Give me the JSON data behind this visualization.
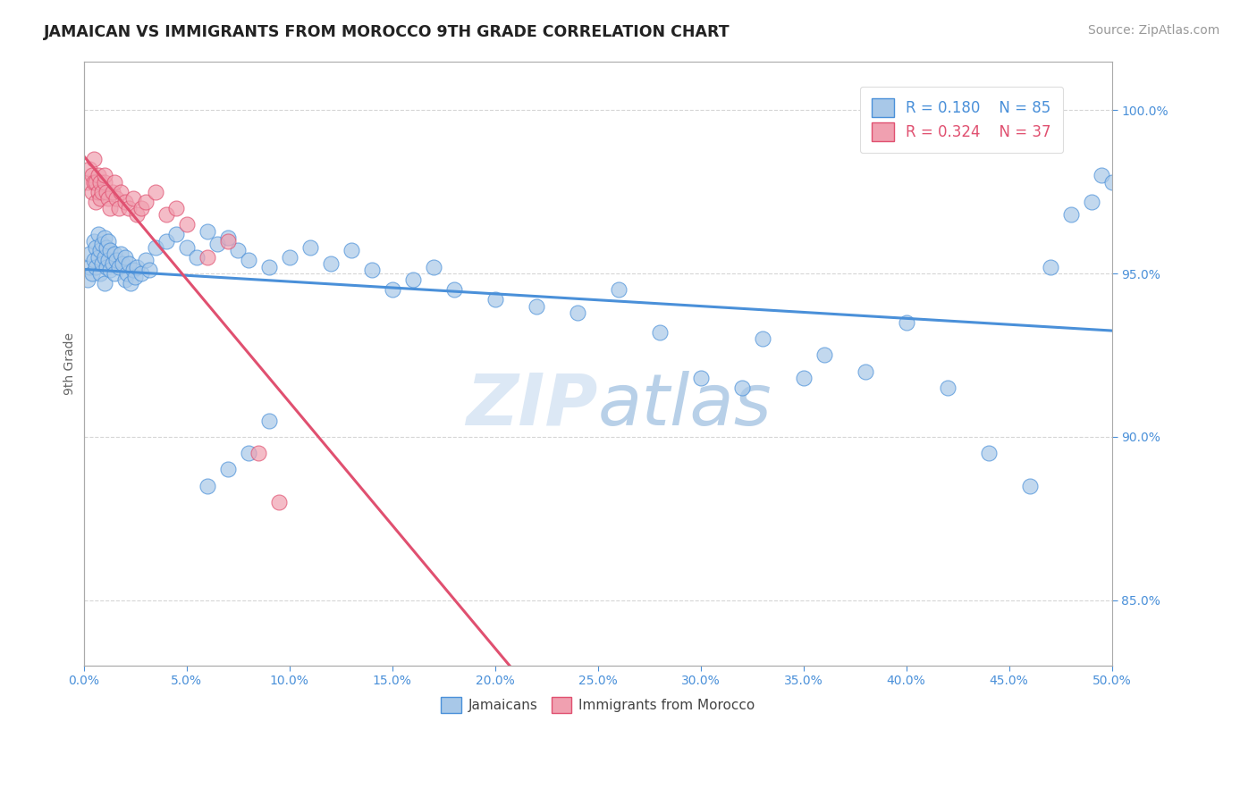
{
  "title": "JAMAICAN VS IMMIGRANTS FROM MOROCCO 9TH GRADE CORRELATION CHART",
  "source_text": "Source: ZipAtlas.com",
  "ylabel": "9th Grade",
  "x_min": 0.0,
  "x_max": 50.0,
  "y_min": 83.0,
  "y_max": 101.5,
  "ytick_values": [
    85.0,
    90.0,
    95.0,
    100.0
  ],
  "legend_r1": "R = 0.180",
  "legend_n1": "N = 85",
  "legend_r2": "R = 0.324",
  "legend_n2": "N = 37",
  "series1_color": "#a8c8e8",
  "series2_color": "#f0a0b0",
  "trendline1_color": "#4a90d9",
  "trendline2_color": "#e05070",
  "background_color": "#ffffff",
  "watermark_color": "#d0dff0",
  "jamaicans_x": [
    0.2,
    0.3,
    0.3,
    0.4,
    0.5,
    0.5,
    0.6,
    0.6,
    0.7,
    0.7,
    0.8,
    0.8,
    0.9,
    0.9,
    1.0,
    1.0,
    1.0,
    1.1,
    1.1,
    1.2,
    1.2,
    1.3,
    1.3,
    1.4,
    1.5,
    1.5,
    1.6,
    1.7,
    1.8,
    1.9,
    2.0,
    2.0,
    2.1,
    2.2,
    2.3,
    2.4,
    2.5,
    2.6,
    2.8,
    3.0,
    3.2,
    3.5,
    4.0,
    4.5,
    5.0,
    5.5,
    6.0,
    6.5,
    7.0,
    7.5,
    8.0,
    9.0,
    10.0,
    11.0,
    12.0,
    13.0,
    14.0,
    15.0,
    16.0,
    17.0,
    18.0,
    20.0,
    22.0,
    24.0,
    26.0,
    28.0,
    30.0,
    32.0,
    33.0,
    35.0,
    36.0,
    38.0,
    40.0,
    42.0,
    44.0,
    46.0,
    47.0,
    48.0,
    49.0,
    49.5,
    50.0,
    6.0,
    7.0,
    8.0,
    9.0
  ],
  "jamaicans_y": [
    94.8,
    95.2,
    95.6,
    95.0,
    95.4,
    96.0,
    95.2,
    95.8,
    95.5,
    96.2,
    95.0,
    95.7,
    95.3,
    95.9,
    94.7,
    95.5,
    96.1,
    95.2,
    95.8,
    95.4,
    96.0,
    95.1,
    95.7,
    95.3,
    95.0,
    95.6,
    95.4,
    95.2,
    95.6,
    95.3,
    94.8,
    95.5,
    95.0,
    95.3,
    94.7,
    95.1,
    94.9,
    95.2,
    95.0,
    95.4,
    95.1,
    95.8,
    96.0,
    96.2,
    95.8,
    95.5,
    96.3,
    95.9,
    96.1,
    95.7,
    95.4,
    95.2,
    95.5,
    95.8,
    95.3,
    95.7,
    95.1,
    94.5,
    94.8,
    95.2,
    94.5,
    94.2,
    94.0,
    93.8,
    94.5,
    93.2,
    91.8,
    91.5,
    93.0,
    91.8,
    92.5,
    92.0,
    93.5,
    91.5,
    89.5,
    88.5,
    95.2,
    96.8,
    97.2,
    98.0,
    97.8,
    88.5,
    89.0,
    89.5,
    90.5
  ],
  "morocco_x": [
    0.2,
    0.3,
    0.4,
    0.4,
    0.5,
    0.5,
    0.6,
    0.6,
    0.7,
    0.7,
    0.8,
    0.8,
    0.9,
    1.0,
    1.0,
    1.1,
    1.2,
    1.3,
    1.4,
    1.5,
    1.6,
    1.7,
    1.8,
    2.0,
    2.2,
    2.4,
    2.6,
    2.8,
    3.0,
    3.5,
    4.0,
    4.5,
    5.0,
    6.0,
    7.0,
    8.5,
    9.5
  ],
  "morocco_y": [
    97.8,
    98.2,
    97.5,
    98.0,
    97.8,
    98.5,
    97.2,
    97.8,
    97.5,
    98.0,
    97.3,
    97.8,
    97.5,
    97.8,
    98.0,
    97.5,
    97.3,
    97.0,
    97.5,
    97.8,
    97.3,
    97.0,
    97.5,
    97.2,
    97.0,
    97.3,
    96.8,
    97.0,
    97.2,
    97.5,
    96.8,
    97.0,
    96.5,
    95.5,
    96.0,
    89.5,
    88.0
  ]
}
